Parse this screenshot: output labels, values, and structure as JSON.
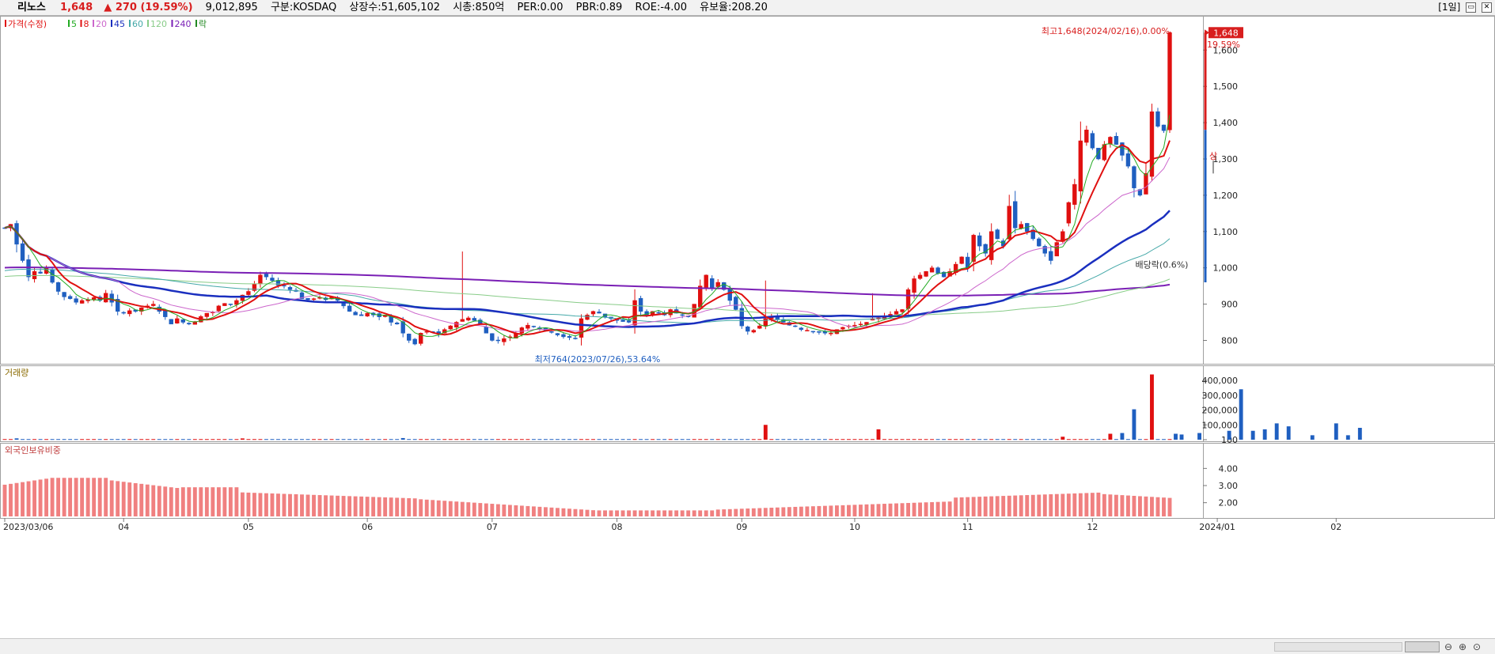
{
  "header": {
    "name": "리노스",
    "price": "1,648",
    "change": "▲ 270 (19.59%)",
    "volume": "9,012,895",
    "market": "구분:KOSDAQ",
    "shares": "상장수:51,605,102",
    "mcap": "시총:850억",
    "per": "PER:0.00",
    "pbr": "PBR:0.89",
    "roe": "ROE:-4.00",
    "float": "유보율:208.20",
    "period": "[1일]"
  },
  "colors": {
    "up": "#e01010",
    "down": "#1f5fc0",
    "ma5": "#22aa22",
    "ma8": "#e01010",
    "ma20": "#cc66cc",
    "ma45": "#1a2fbf",
    "ma60": "#44a8a8",
    "ma120": "#88cc88",
    "ma240": "#7a1fb5",
    "foreign": "#f08080"
  },
  "chart_data": [
    {
      "type": "candlestick",
      "legend": [
        {
          "label": "가격(수정)",
          "color": "#e01010"
        },
        {
          "label": "5",
          "color": "#22aa22"
        },
        {
          "label": "8",
          "color": "#e01010"
        },
        {
          "label": "20",
          "color": "#cc66cc"
        },
        {
          "label": "45",
          "color": "#1a2fbf"
        },
        {
          "label": "60",
          "color": "#44a8a8"
        },
        {
          "label": "120",
          "color": "#88cc88"
        },
        {
          "label": "240",
          "color": "#7a1fb5"
        },
        {
          "label": "락",
          "color": "#228822"
        }
      ],
      "ylim": [
        740,
        1690
      ],
      "yticks": [
        800,
        900,
        1000,
        1100,
        1200,
        1300,
        1400,
        1500,
        1600
      ],
      "ytick_labels": [
        "800",
        "900",
        "1,000",
        "1,100",
        "1,200",
        "1,300",
        "1,400",
        "1,500",
        "1,600"
      ],
      "x_labels": [
        "2023/03/06",
        "04",
        "05",
        "06",
        "07",
        "08",
        "09",
        "10",
        "11",
        "12",
        "2024/01",
        "02"
      ],
      "x_label_index": [
        0,
        20,
        41,
        61,
        82,
        103,
        124,
        143,
        162,
        183,
        204,
        224
      ],
      "closes": [
        1110,
        1120,
        1065,
        1020,
        975,
        990,
        985,
        1000,
        960,
        935,
        920,
        915,
        905,
        910,
        912,
        918,
        910,
        930,
        905,
        880,
        875,
        882,
        880,
        890,
        895,
        900,
        880,
        865,
        845,
        860,
        850,
        845,
        852,
        866,
        875,
        878,
        895,
        902,
        900,
        910,
        925,
        935,
        955,
        980,
        975,
        965,
        952,
        950,
        940,
        935,
        915,
        912,
        915,
        918,
        912,
        920,
        910,
        895,
        880,
        870,
        868,
        875,
        870,
        865,
        870,
        850,
        845,
        820,
        800,
        790,
        820,
        825,
        822,
        818,
        830,
        840,
        850,
        858,
        862,
        855,
        845,
        820,
        800,
        800,
        805,
        810,
        820,
        835,
        842,
        838,
        832,
        828,
        822,
        815,
        810,
        808,
        805,
        860,
        870,
        880,
        875,
        865,
        860,
        855,
        852,
        850,
        910,
        880,
        870,
        880,
        875,
        870,
        885,
        875,
        870,
        865,
        900,
        950,
        980,
        945,
        960,
        940,
        910,
        885,
        840,
        825,
        828,
        840,
        860,
        865,
        858,
        850,
        842,
        838,
        830,
        828,
        825,
        822,
        820,
        820,
        830,
        836,
        840,
        842,
        845,
        850,
        860,
        862,
        868,
        872,
        880,
        885,
        940,
        970,
        980,
        990,
        1000,
        985,
        975,
        990,
        1010,
        1030,
        1000,
        1090,
        1060,
        1040,
        1100,
        1080,
        1060,
        1170,
        1110,
        1120,
        1100,
        1080,
        1060,
        1040,
        1020,
        1070,
        1100,
        1180,
        1230,
        1350,
        1380,
        1330,
        1300,
        1340,
        1360,
        1340,
        1310,
        1280,
        1220,
        1200,
        1260,
        1430,
        1390,
        1378,
        1648
      ],
      "volume": {
        "ylim": [
          0,
          480000
        ],
        "yticks": [
          100,
          100000,
          200000,
          300000,
          400000
        ],
        "ytick_labels": [
          "100",
          "100,000",
          "200,000",
          "300,000",
          "400,000"
        ],
        "label": "거래량",
        "spikes": [
          [
            2,
            9000
          ],
          [
            40,
            8500
          ],
          [
            67,
            11000
          ],
          [
            128,
            100000
          ],
          [
            147,
            70000
          ],
          [
            178,
            20000
          ],
          [
            186,
            40000
          ],
          [
            188,
            45000
          ],
          [
            190,
            205000
          ],
          [
            193,
            440000
          ],
          [
            197,
            40000
          ],
          [
            198,
            35000
          ],
          [
            201,
            45000
          ],
          [
            206,
            60000
          ],
          [
            208,
            340000
          ],
          [
            210,
            60000
          ],
          [
            212,
            70000
          ],
          [
            214,
            110000
          ],
          [
            216,
            90000
          ],
          [
            220,
            30000
          ],
          [
            224,
            110000
          ],
          [
            226,
            30000
          ],
          [
            228,
            80000
          ]
        ],
        "base": 4000
      },
      "foreign_ratio": {
        "ylim": [
          1.2,
          5.4
        ],
        "yticks": [
          2,
          3,
          4
        ],
        "ytick_labels": [
          "2.00",
          "3.00",
          "4.00"
        ],
        "label": "외국인보유비중"
      },
      "annotations": {
        "high": "최고1,648(2024/02/16),0.00%",
        "low": "최저764(2023/07/26),53.64%",
        "pct": "19.59%",
        "last": "1,648",
        "sang": "상",
        "bae": "배당락(0.6%)"
      }
    }
  ]
}
